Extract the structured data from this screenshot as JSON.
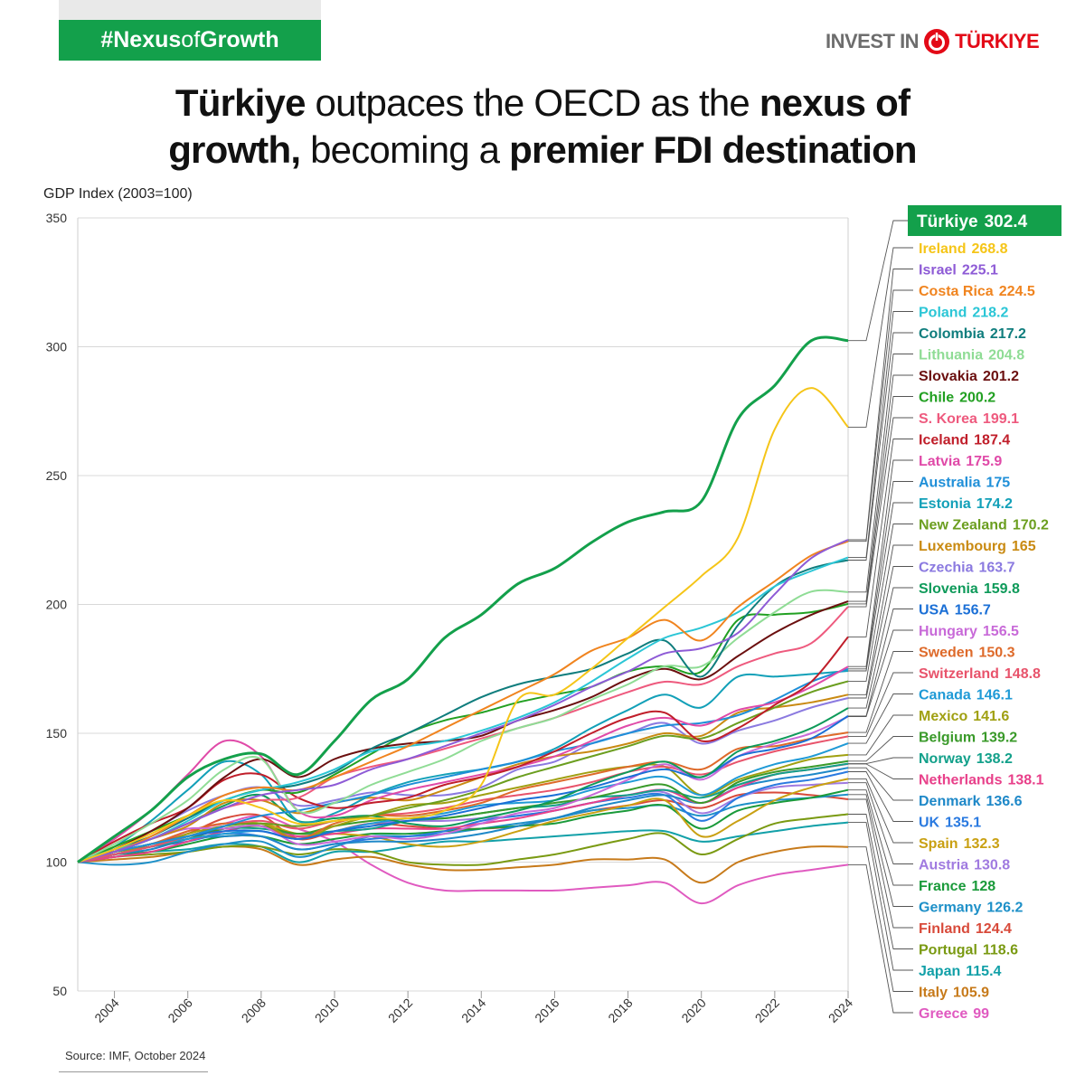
{
  "header": {
    "hashtag_bold_1": "#Nexus",
    "hashtag_light": "of",
    "hashtag_bold_2": "Growth",
    "logo_left": "INVEST IN",
    "logo_right": "TÜRKIYE",
    "title_parts": [
      {
        "text": "Türkiye",
        "bold": true
      },
      {
        "text": " outpaces the OECD as the ",
        "bold": false
      },
      {
        "text": "nexus of",
        "bold": true
      },
      {
        "text": "growth,",
        "bold": true,
        "newline": true
      },
      {
        "text": " becoming a ",
        "bold": false
      },
      {
        "text": "premier FDI destination",
        "bold": true
      }
    ]
  },
  "footer": {
    "source": "Source: IMF, October 2024"
  },
  "chart_data": {
    "type": "line",
    "title": "Türkiye outpaces the OECD as the nexus of growth, becoming a premier FDI destination",
    "ylabel": "GDP Index (2003=100)",
    "xlabel": "",
    "x": [
      2003,
      2004,
      2005,
      2006,
      2007,
      2008,
      2009,
      2010,
      2011,
      2012,
      2013,
      2014,
      2015,
      2016,
      2017,
      2018,
      2019,
      2020,
      2021,
      2022,
      2023,
      2024
    ],
    "x_tick_labels": [
      "2004",
      "2006",
      "2008",
      "2010",
      "2012",
      "2014",
      "2016",
      "2018",
      "2020",
      "2022",
      "2024"
    ],
    "x_ticks": [
      2004,
      2006,
      2008,
      2010,
      2012,
      2014,
      2016,
      2018,
      2020,
      2022,
      2024
    ],
    "ylim": [
      50,
      350
    ],
    "y_ticks": [
      50,
      100,
      150,
      200,
      250,
      300,
      350
    ],
    "grid": true,
    "legend_position": "right",
    "series": [
      {
        "name": "Türkiye",
        "label": "302.4",
        "color": "#13a04b",
        "highlight": true,
        "values": [
          100,
          110,
          120,
          133,
          140,
          142,
          134,
          147,
          163,
          171,
          187,
          196,
          208,
          214,
          224,
          232,
          236,
          240,
          272,
          285,
          302.4,
          302.4
        ]
      },
      {
        "name": "Ireland",
        "label": "268.8",
        "color": "#f5c518",
        "values": [
          100,
          105,
          111,
          118,
          124,
          121,
          115,
          116,
          117,
          117,
          120,
          130,
          163,
          165,
          175,
          187,
          199,
          211,
          226,
          268,
          284,
          268.8
        ]
      },
      {
        "name": "Israel",
        "label": "225.1",
        "color": "#8e5bd6",
        "values": [
          100,
          104,
          109,
          115,
          121,
          126,
          128,
          130,
          136,
          140,
          145,
          150,
          155,
          161,
          168,
          174,
          181,
          183,
          189,
          204,
          218,
          225.1
        ]
      },
      {
        "name": "Costa Rica",
        "label": "224.5",
        "color": "#f0841f",
        "values": [
          100,
          104,
          110,
          118,
          126,
          129,
          128,
          133,
          139,
          145,
          152,
          159,
          166,
          173,
          182,
          187,
          194,
          186,
          199,
          209,
          219,
          224.5
        ]
      },
      {
        "name": "Poland",
        "label": "218.2",
        "color": "#2bc6d6",
        "values": [
          100,
          105,
          109,
          116,
          124,
          128,
          131,
          136,
          143,
          145,
          147,
          151,
          156,
          162,
          170,
          179,
          187,
          191,
          197,
          207,
          213,
          218.2
        ]
      },
      {
        "name": "Colombia",
        "label": "217.2",
        "color": "#0f7d7d",
        "values": [
          100,
          105,
          110,
          117,
          124,
          128,
          130,
          135,
          144,
          150,
          157,
          164,
          169,
          172,
          175,
          181,
          186,
          172,
          192,
          207,
          214,
          217.2
        ]
      },
      {
        "name": "Lithuania",
        "label": "204.8",
        "color": "#8fdc95",
        "values": [
          100,
          107,
          115,
          124,
          136,
          140,
          120,
          123,
          130,
          135,
          140,
          147,
          152,
          156,
          163,
          169,
          176,
          176,
          187,
          197,
          205,
          204.8
        ]
      },
      {
        "name": "Slovakia",
        "label": "201.2",
        "color": "#6b0f0f",
        "values": [
          100,
          105,
          112,
          121,
          133,
          140,
          133,
          140,
          144,
          146,
          147,
          149,
          155,
          159,
          164,
          171,
          175,
          171,
          180,
          189,
          196,
          201.2
        ]
      },
      {
        "name": "Chile",
        "label": "200.2",
        "color": "#22a022",
        "values": [
          100,
          106,
          112,
          118,
          124,
          128,
          127,
          134,
          142,
          150,
          155,
          158,
          162,
          165,
          168,
          174,
          176,
          174,
          194,
          196,
          197,
          200.2
        ]
      },
      {
        "name": "S. Korea",
        "label": "199.1",
        "color": "#ee5a7e",
        "values": [
          100,
          105,
          109,
          115,
          121,
          124,
          125,
          133,
          137,
          140,
          144,
          148,
          152,
          156,
          161,
          166,
          170,
          169,
          176,
          181,
          185,
          199.1
        ]
      },
      {
        "name": "Iceland",
        "label": "187.4",
        "color": "#c01e2a",
        "values": [
          100,
          108,
          115,
          121,
          132,
          134,
          125,
          121,
          123,
          125,
          130,
          133,
          137,
          143,
          150,
          156,
          158,
          147,
          152,
          161,
          170,
          187.4
        ]
      },
      {
        "name": "Latvia",
        "label": "175.9",
        "color": "#e04aa8",
        "values": [
          100,
          109,
          120,
          134,
          147,
          141,
          120,
          118,
          124,
          128,
          131,
          134,
          137,
          141,
          147,
          153,
          156,
          153,
          159,
          162,
          168,
          175.9
        ]
      },
      {
        "name": "Australia",
        "label": "175",
        "color": "#1f8fd8",
        "values": [
          100,
          104,
          107,
          110,
          114,
          118,
          120,
          123,
          126,
          130,
          133,
          136,
          139,
          143,
          146,
          150,
          153,
          154,
          157,
          163,
          170,
          175
        ]
      },
      {
        "name": "Estonia",
        "label": "174.2",
        "color": "#12a0b8",
        "values": [
          100,
          106,
          116,
          128,
          139,
          134,
          116,
          119,
          126,
          131,
          134,
          136,
          139,
          144,
          152,
          159,
          165,
          160,
          172,
          172,
          173,
          174.2
        ]
      },
      {
        "name": "New Zealand",
        "label": "170.2",
        "color": "#6b9e1f",
        "values": [
          100,
          104,
          107,
          110,
          114,
          115,
          114,
          116,
          118,
          121,
          124,
          128,
          133,
          137,
          141,
          145,
          149,
          148,
          154,
          160,
          166,
          170.2
        ]
      },
      {
        "name": "Luxembourg",
        "label": "165",
        "color": "#c98a12",
        "values": [
          100,
          104,
          109,
          114,
          123,
          124,
          119,
          123,
          125,
          124,
          128,
          133,
          138,
          141,
          143,
          146,
          150,
          149,
          158,
          160,
          162,
          165
        ]
      },
      {
        "name": "Czechia",
        "label": "163.7",
        "color": "#8b7ae0",
        "values": [
          100,
          105,
          112,
          120,
          126,
          129,
          122,
          124,
          127,
          126,
          126,
          129,
          136,
          139,
          146,
          150,
          154,
          146,
          151,
          155,
          160,
          163.7
        ]
      },
      {
        "name": "Slovenia",
        "label": "159.8",
        "color": "#0e9a5a",
        "values": [
          100,
          104,
          109,
          115,
          122,
          126,
          116,
          117,
          118,
          115,
          114,
          117,
          120,
          124,
          130,
          135,
          139,
          133,
          143,
          147,
          152,
          159.8
        ]
      },
      {
        "name": "USA",
        "label": "156.7",
        "color": "#1a6fd6",
        "values": [
          100,
          104,
          107,
          110,
          112,
          112,
          109,
          112,
          114,
          116,
          118,
          121,
          124,
          126,
          129,
          133,
          136,
          133,
          141,
          144,
          148,
          156.7
        ]
      },
      {
        "name": "Hungary",
        "label": "156.5",
        "color": "#c86ad8",
        "values": [
          100,
          105,
          109,
          113,
          113,
          114,
          107,
          108,
          110,
          109,
          111,
          115,
          119,
          121,
          126,
          132,
          138,
          132,
          141,
          146,
          150,
          156.5
        ]
      },
      {
        "name": "Sweden",
        "label": "150.3",
        "color": "#de6a2a",
        "values": [
          100,
          104,
          107,
          112,
          115,
          114,
          109,
          115,
          118,
          118,
          120,
          123,
          128,
          131,
          134,
          137,
          139,
          136,
          144,
          145,
          148,
          150.3
        ]
      },
      {
        "name": "Switzerland",
        "label": "148.8",
        "color": "#e8536b",
        "values": [
          100,
          103,
          106,
          110,
          114,
          116,
          113,
          116,
          118,
          119,
          121,
          124,
          126,
          128,
          131,
          135,
          137,
          134,
          139,
          143,
          146,
          148.8
        ]
      },
      {
        "name": "Canada",
        "label": "146.1",
        "color": "#1f9ad6",
        "values": [
          100,
          103,
          106,
          109,
          111,
          112,
          109,
          112,
          115,
          117,
          119,
          122,
          123,
          124,
          128,
          131,
          133,
          126,
          133,
          138,
          141,
          146.1
        ]
      },
      {
        "name": "Mexico",
        "label": "141.6",
        "color": "#a0a012",
        "values": [
          100,
          104,
          106,
          111,
          114,
          115,
          109,
          114,
          118,
          122,
          123,
          126,
          129,
          132,
          135,
          137,
          137,
          126,
          132,
          136,
          140,
          141.6
        ]
      },
      {
        "name": "Belgium",
        "label": "139.2",
        "color": "#3a9a2a",
        "values": [
          100,
          104,
          106,
          109,
          113,
          114,
          111,
          114,
          116,
          117,
          117,
          119,
          121,
          123,
          125,
          128,
          130,
          123,
          131,
          135,
          137,
          139.2
        ]
      },
      {
        "name": "Norway",
        "label": "138.2",
        "color": "#12a08a",
        "values": [
          100,
          104,
          107,
          110,
          113,
          113,
          111,
          112,
          113,
          116,
          117,
          119,
          121,
          122,
          125,
          126,
          128,
          125,
          130,
          134,
          136,
          138.2
        ]
      },
      {
        "name": "Netherlands",
        "label": "138.1",
        "color": "#e8408a",
        "values": [
          100,
          102,
          104,
          108,
          112,
          114,
          110,
          111,
          113,
          113,
          113,
          115,
          117,
          120,
          123,
          126,
          128,
          123,
          129,
          134,
          136,
          138.1
        ]
      },
      {
        "name": "Denmark",
        "label": "136.6",
        "color": "#1e88c8",
        "values": [
          100,
          103,
          105,
          109,
          110,
          110,
          105,
          107,
          108,
          108,
          109,
          111,
          114,
          117,
          121,
          124,
          126,
          123,
          129,
          132,
          134,
          136.6
        ]
      },
      {
        "name": "UK",
        "label": "135.1",
        "color": "#2a7ae0",
        "values": [
          100,
          103,
          106,
          108,
          111,
          110,
          105,
          107,
          109,
          110,
          112,
          116,
          118,
          120,
          123,
          125,
          126,
          116,
          125,
          130,
          132,
          135.1
        ]
      },
      {
        "name": "Spain",
        "label": "132.3",
        "color": "#c9a012",
        "values": [
          100,
          103,
          106,
          110,
          114,
          115,
          111,
          111,
          110,
          107,
          106,
          108,
          112,
          116,
          119,
          122,
          124,
          110,
          116,
          124,
          129,
          132.3
        ]
      },
      {
        "name": "Austria",
        "label": "130.8",
        "color": "#a07ae0",
        "values": [
          100,
          103,
          105,
          109,
          113,
          114,
          110,
          112,
          115,
          116,
          116,
          117,
          118,
          120,
          123,
          126,
          127,
          119,
          125,
          129,
          130,
          130.8
        ]
      },
      {
        "name": "France",
        "label": "128",
        "color": "#1a9a3a",
        "values": [
          100,
          103,
          104,
          107,
          110,
          110,
          107,
          109,
          111,
          111,
          112,
          113,
          114,
          115,
          118,
          120,
          122,
          113,
          120,
          123,
          125,
          128
        ]
      },
      {
        "name": "Germany",
        "label": "126.2",
        "color": "#1e90c8",
        "values": [
          100,
          99,
          100,
          104,
          107,
          108,
          102,
          106,
          110,
          110,
          111,
          113,
          115,
          117,
          120,
          121,
          122,
          118,
          122,
          124,
          125,
          126.2
        ]
      },
      {
        "name": "Finland",
        "label": "124.4",
        "color": "#d84a3a",
        "values": [
          100,
          104,
          107,
          111,
          117,
          118,
          109,
          112,
          115,
          114,
          113,
          113,
          114,
          117,
          120,
          122,
          124,
          121,
          126,
          127,
          126,
          124.4
        ]
      },
      {
        "name": "Portugal",
        "label": "118.6",
        "color": "#7a9a12",
        "values": [
          100,
          102,
          103,
          104,
          106,
          106,
          103,
          105,
          104,
          100,
          99,
          99,
          101,
          103,
          106,
          109,
          111,
          103,
          109,
          115,
          117,
          118.6
        ]
      },
      {
        "name": "Japan",
        "label": "115.4",
        "color": "#12a0a8",
        "values": [
          100,
          102,
          104,
          105,
          107,
          106,
          100,
          104,
          104,
          106,
          108,
          108,
          109,
          110,
          111,
          112,
          112,
          108,
          110,
          112,
          114,
          115.4
        ]
      },
      {
        "name": "Italy",
        "label": "105.9",
        "color": "#c77a1a",
        "values": [
          100,
          101,
          102,
          104,
          106,
          105,
          99,
          101,
          102,
          99,
          97,
          97,
          98,
          99,
          101,
          101,
          101,
          92,
          100,
          104,
          106,
          105.9
        ]
      },
      {
        "name": "Greece",
        "label": "99",
        "color": "#e05ac0",
        "values": [
          100,
          105,
          106,
          112,
          115,
          118,
          113,
          108,
          99,
          92,
          89,
          89,
          89,
          89,
          90,
          91,
          92,
          84,
          91,
          95,
          97,
          99
        ]
      }
    ]
  }
}
